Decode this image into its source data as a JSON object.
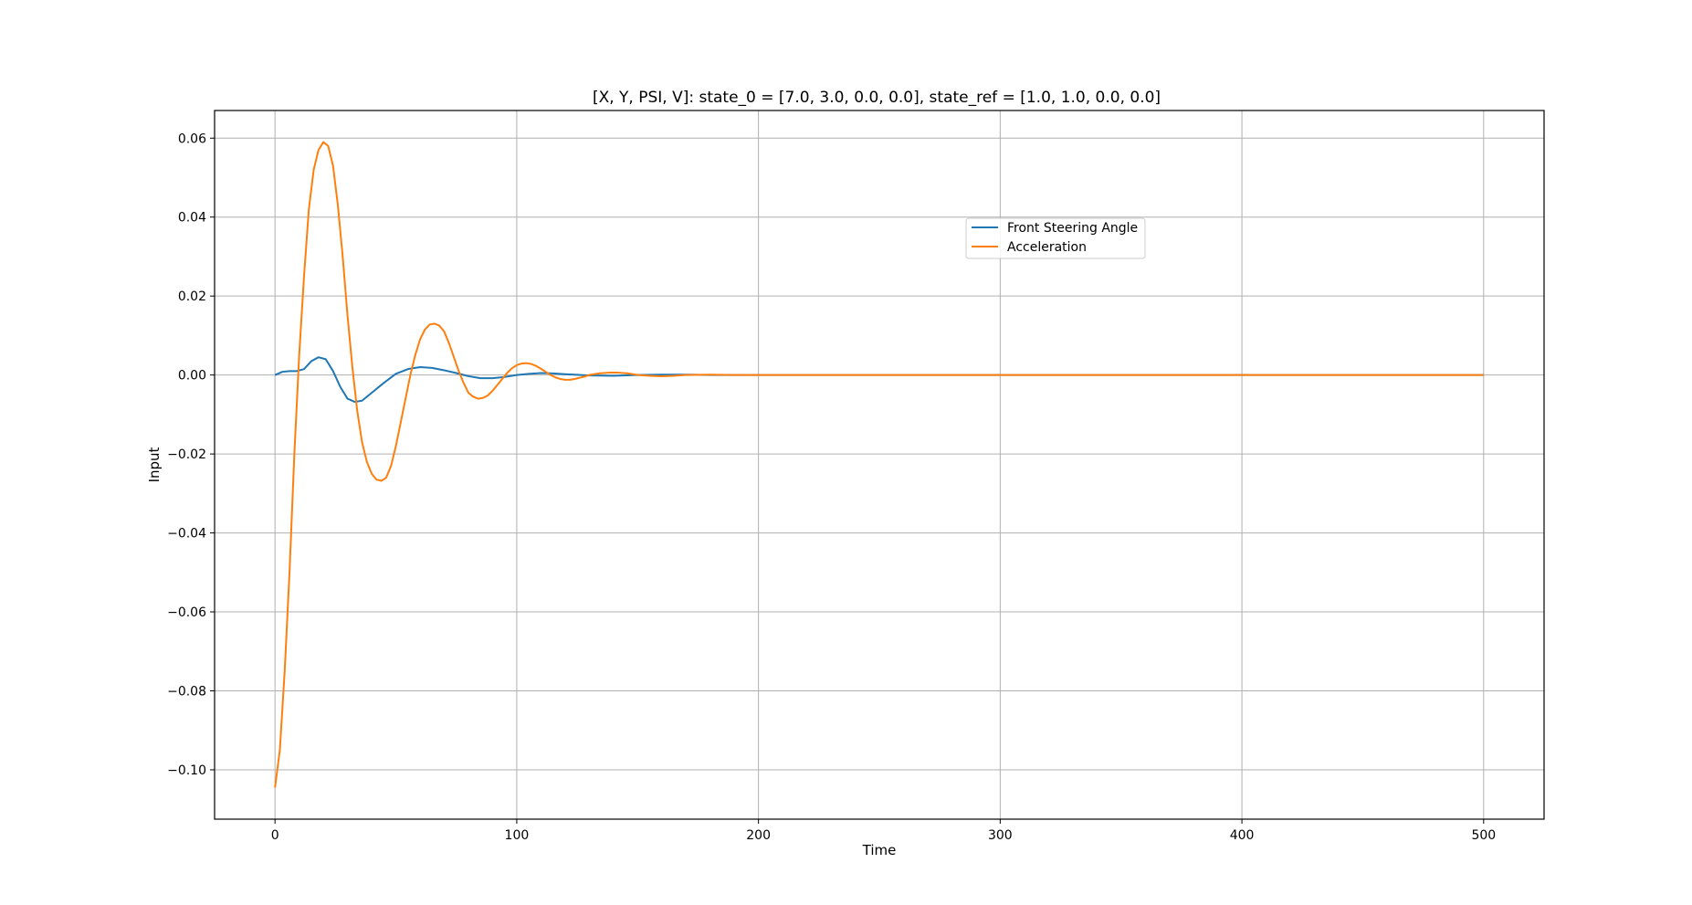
{
  "chart_data": {
    "type": "line",
    "title": "[X, Y, PSI, V]: state_0 = [7.0, 3.0, 0.0, 0.0], state_ref = [1.0, 1.0, 0.0, 0.0]",
    "xlabel": "Time",
    "ylabel": "Input",
    "xlim": [
      -25,
      525
    ],
    "ylim": [
      -0.1125,
      0.067
    ],
    "xticks": [
      0,
      100,
      200,
      300,
      400,
      500
    ],
    "xtick_labels": [
      "0",
      "100",
      "200",
      "300",
      "400",
      "500"
    ],
    "yticks": [
      0.06,
      0.04,
      0.02,
      0.0,
      -0.02,
      -0.04,
      -0.06,
      -0.08,
      -0.1
    ],
    "ytick_labels": [
      "0.06",
      "0.04",
      "0.02",
      "0.00",
      "−0.02",
      "−0.04",
      "−0.06",
      "−0.08",
      "−0.10"
    ],
    "grid": true,
    "legend_position": "upper-center-right",
    "series": [
      {
        "name": "Front Steering Angle",
        "color": "#1f77b4",
        "points": [
          [
            0,
            0.0
          ],
          [
            3,
            0.0008
          ],
          [
            6,
            0.001
          ],
          [
            9,
            0.001
          ],
          [
            12,
            0.0015
          ],
          [
            15,
            0.0035
          ],
          [
            18,
            0.0045
          ],
          [
            21,
            0.004
          ],
          [
            24,
            0.001
          ],
          [
            27,
            -0.003
          ],
          [
            30,
            -0.006
          ],
          [
            33,
            -0.0068
          ],
          [
            36,
            -0.0065
          ],
          [
            40,
            -0.0045
          ],
          [
            45,
            -0.002
          ],
          [
            50,
            0.0003
          ],
          [
            55,
            0.0015
          ],
          [
            60,
            0.002
          ],
          [
            65,
            0.0018
          ],
          [
            70,
            0.0012
          ],
          [
            75,
            0.0005
          ],
          [
            80,
            -0.0003
          ],
          [
            85,
            -0.0008
          ],
          [
            90,
            -0.0008
          ],
          [
            95,
            -0.0005
          ],
          [
            100,
            0.0
          ],
          [
            105,
            0.0003
          ],
          [
            110,
            0.0005
          ],
          [
            115,
            0.0004
          ],
          [
            120,
            0.0002
          ],
          [
            130,
            -0.0001
          ],
          [
            140,
            -0.0002
          ],
          [
            150,
            0.0
          ],
          [
            160,
            0.0001
          ],
          [
            170,
            0.0001
          ],
          [
            180,
            0.0
          ],
          [
            200,
            0.0
          ],
          [
            250,
            0.0
          ],
          [
            300,
            0.0
          ],
          [
            350,
            0.0
          ],
          [
            400,
            0.0
          ],
          [
            450,
            0.0
          ],
          [
            500,
            0.0
          ]
        ]
      },
      {
        "name": "Acceleration",
        "color": "#ff7f0e",
        "points": [
          [
            0,
            -0.1045
          ],
          [
            2,
            -0.095
          ],
          [
            4,
            -0.075
          ],
          [
            6,
            -0.05
          ],
          [
            8,
            -0.02
          ],
          [
            10,
            0.005
          ],
          [
            12,
            0.025
          ],
          [
            14,
            0.042
          ],
          [
            16,
            0.052
          ],
          [
            18,
            0.057
          ],
          [
            20,
            0.059
          ],
          [
            22,
            0.058
          ],
          [
            24,
            0.053
          ],
          [
            26,
            0.043
          ],
          [
            28,
            0.03
          ],
          [
            30,
            0.015
          ],
          [
            32,
            0.002
          ],
          [
            34,
            -0.009
          ],
          [
            36,
            -0.017
          ],
          [
            38,
            -0.022
          ],
          [
            40,
            -0.025
          ],
          [
            42,
            -0.0265
          ],
          [
            44,
            -0.0268
          ],
          [
            46,
            -0.026
          ],
          [
            48,
            -0.023
          ],
          [
            50,
            -0.018
          ],
          [
            52,
            -0.012
          ],
          [
            54,
            -0.006
          ],
          [
            56,
            0.0
          ],
          [
            58,
            0.005
          ],
          [
            60,
            0.009
          ],
          [
            62,
            0.0115
          ],
          [
            64,
            0.0128
          ],
          [
            66,
            0.013
          ],
          [
            68,
            0.0125
          ],
          [
            70,
            0.011
          ],
          [
            72,
            0.008
          ],
          [
            74,
            0.0045
          ],
          [
            76,
            0.001
          ],
          [
            78,
            -0.002
          ],
          [
            80,
            -0.0045
          ],
          [
            82,
            -0.0055
          ],
          [
            84,
            -0.006
          ],
          [
            86,
            -0.0058
          ],
          [
            88,
            -0.0052
          ],
          [
            90,
            -0.004
          ],
          [
            92,
            -0.0025
          ],
          [
            94,
            -0.001
          ],
          [
            96,
            0.0005
          ],
          [
            98,
            0.0017
          ],
          [
            100,
            0.0025
          ],
          [
            102,
            0.0029
          ],
          [
            104,
            0.003
          ],
          [
            106,
            0.0028
          ],
          [
            108,
            0.0023
          ],
          [
            110,
            0.0016
          ],
          [
            112,
            0.0008
          ],
          [
            114,
            0.0
          ],
          [
            116,
            -0.0006
          ],
          [
            118,
            -0.001
          ],
          [
            120,
            -0.0012
          ],
          [
            122,
            -0.0012
          ],
          [
            124,
            -0.001
          ],
          [
            126,
            -0.0007
          ],
          [
            128,
            -0.0004
          ],
          [
            130,
            0.0
          ],
          [
            134,
            0.0004
          ],
          [
            138,
            0.0006
          ],
          [
            142,
            0.0006
          ],
          [
            146,
            0.0004
          ],
          [
            150,
            0.0
          ],
          [
            155,
            -0.0002
          ],
          [
            160,
            -0.0003
          ],
          [
            165,
            -0.0002
          ],
          [
            170,
            0.0
          ],
          [
            180,
            0.0001
          ],
          [
            190,
            0.0
          ],
          [
            200,
            0.0
          ],
          [
            250,
            0.0
          ],
          [
            300,
            0.0
          ],
          [
            350,
            0.0
          ],
          [
            400,
            0.0
          ],
          [
            450,
            0.0
          ],
          [
            500,
            0.0
          ]
        ]
      }
    ]
  }
}
